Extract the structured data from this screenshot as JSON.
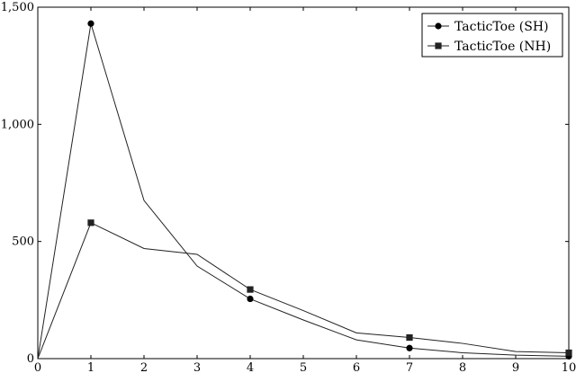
{
  "chart_data": {
    "type": "line",
    "title": "",
    "xlabel": "",
    "ylabel": "",
    "xlim": [
      0,
      10
    ],
    "ylim": [
      0,
      1500
    ],
    "xticks": [
      0,
      1,
      2,
      3,
      4,
      5,
      6,
      7,
      8,
      9,
      10
    ],
    "yticks": [
      0,
      500,
      1000,
      1500
    ],
    "xtick_labels": [
      "0",
      "1",
      "2",
      "3",
      "4",
      "5",
      "6",
      "7",
      "8",
      "9",
      "10"
    ],
    "ytick_labels": [
      "0",
      "500",
      "1,000",
      "1,500"
    ],
    "grid": false,
    "legend_position": "top-right",
    "x": [
      0,
      1,
      2,
      3,
      4,
      5,
      6,
      7,
      8,
      9,
      10
    ],
    "series": [
      {
        "name": "TacticToe (SH)",
        "marker": "circle",
        "values": [
          0,
          1430,
          675,
          395,
          255,
          165,
          80,
          45,
          25,
          15,
          10
        ],
        "marked_x": [
          1,
          4,
          7,
          10
        ]
      },
      {
        "name": "TacticToe (NH)",
        "marker": "square",
        "values": [
          0,
          580,
          470,
          445,
          295,
          205,
          110,
          90,
          65,
          30,
          25
        ],
        "marked_x": [
          1,
          4,
          7,
          10
        ]
      }
    ]
  }
}
